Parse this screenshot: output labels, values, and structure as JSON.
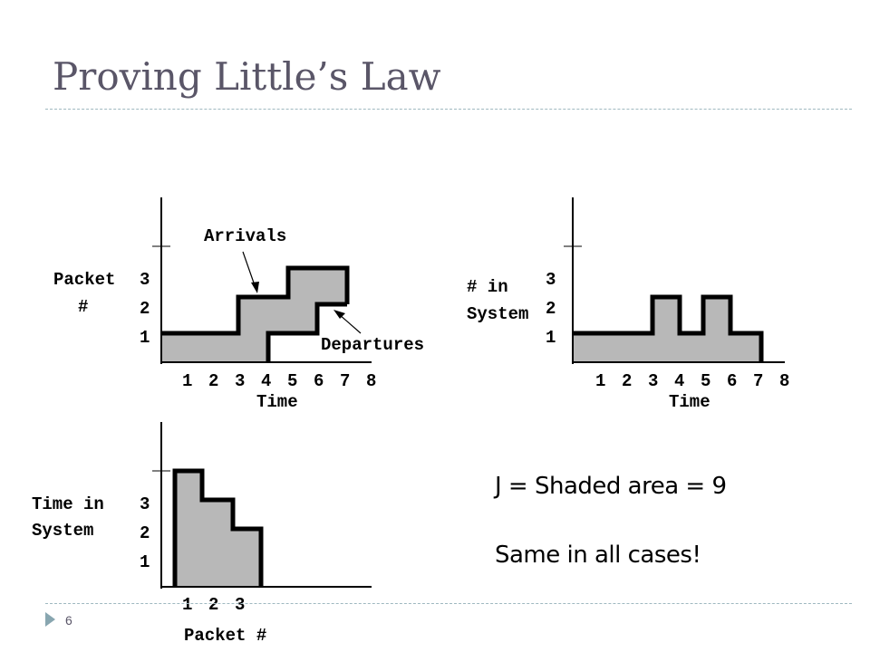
{
  "slide": {
    "title": "Proving Little’s Law",
    "number": "6",
    "note_area": "J = Shaded area = 9",
    "note_same": "Same in all cases!"
  },
  "charts": {
    "cumulative": {
      "y_label_line1": "Packet",
      "y_label_line2": "#",
      "y_ticks": [
        "1",
        "2",
        "3"
      ],
      "x_ticks": [
        "1",
        "2",
        "3",
        "4",
        "5",
        "6",
        "7",
        "8"
      ],
      "x_label": "Time",
      "arrivals_label": "Arrivals",
      "departures_label": "Departures"
    },
    "in_system": {
      "y_label_line1": "# in",
      "y_label_line2": "System",
      "y_ticks": [
        "1",
        "2",
        "3"
      ],
      "x_ticks": [
        "1",
        "2",
        "3",
        "4",
        "5",
        "6",
        "7",
        "8"
      ],
      "x_label": "Time"
    },
    "time_in_system": {
      "y_label_line1": "Time in",
      "y_label_line2": "System",
      "y_ticks": [
        "1",
        "2",
        "3"
      ],
      "x_ticks": [
        "1",
        "2",
        "3"
      ],
      "x_label": "Packet #"
    }
  },
  "colors": {
    "shade": "#b8b8b8",
    "title": "#5a5668",
    "rule": "#9fb8c0"
  }
}
